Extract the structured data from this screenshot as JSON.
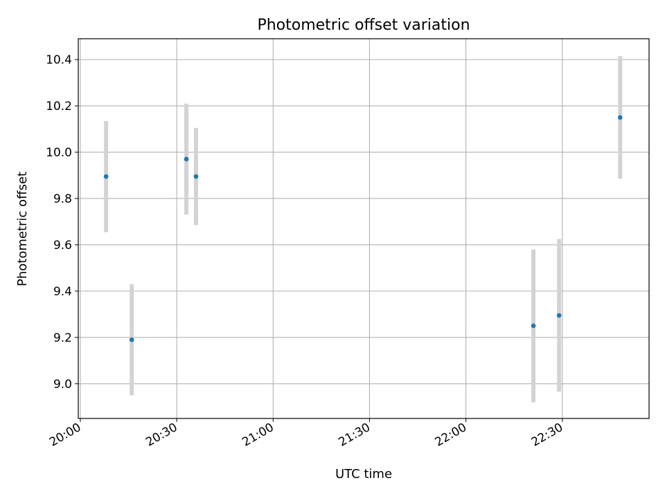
{
  "chart_data": {
    "type": "scatter",
    "title": "Photometric offset variation",
    "xlabel": "UTC time",
    "ylabel": "Photometric offset",
    "xlim": [
      "20:00",
      "22:57"
    ],
    "ylim": [
      8.85,
      10.49
    ],
    "x_ticks": [
      "20:00",
      "20:30",
      "21:00",
      "21:30",
      "22:00",
      "22:30"
    ],
    "y_ticks": [
      "9.0",
      "9.2",
      "9.4",
      "9.6",
      "9.8",
      "10.0",
      "10.2",
      "10.4"
    ],
    "grid": true,
    "legend": "none",
    "series": [
      {
        "x": [
          "20:08",
          "20:16",
          "20:33",
          "20:36",
          "22:21",
          "22:29",
          "22:48"
        ],
        "y": [
          9.895,
          9.19,
          9.97,
          9.895,
          9.25,
          9.295,
          10.15
        ],
        "yerr": [
          0.24,
          0.24,
          0.24,
          0.21,
          0.33,
          0.33,
          0.265
        ]
      }
    ],
    "colors": {
      "marker": "#1f77b4",
      "errorbar": "#d3d3d3",
      "grid": "#b0b0b0"
    }
  }
}
